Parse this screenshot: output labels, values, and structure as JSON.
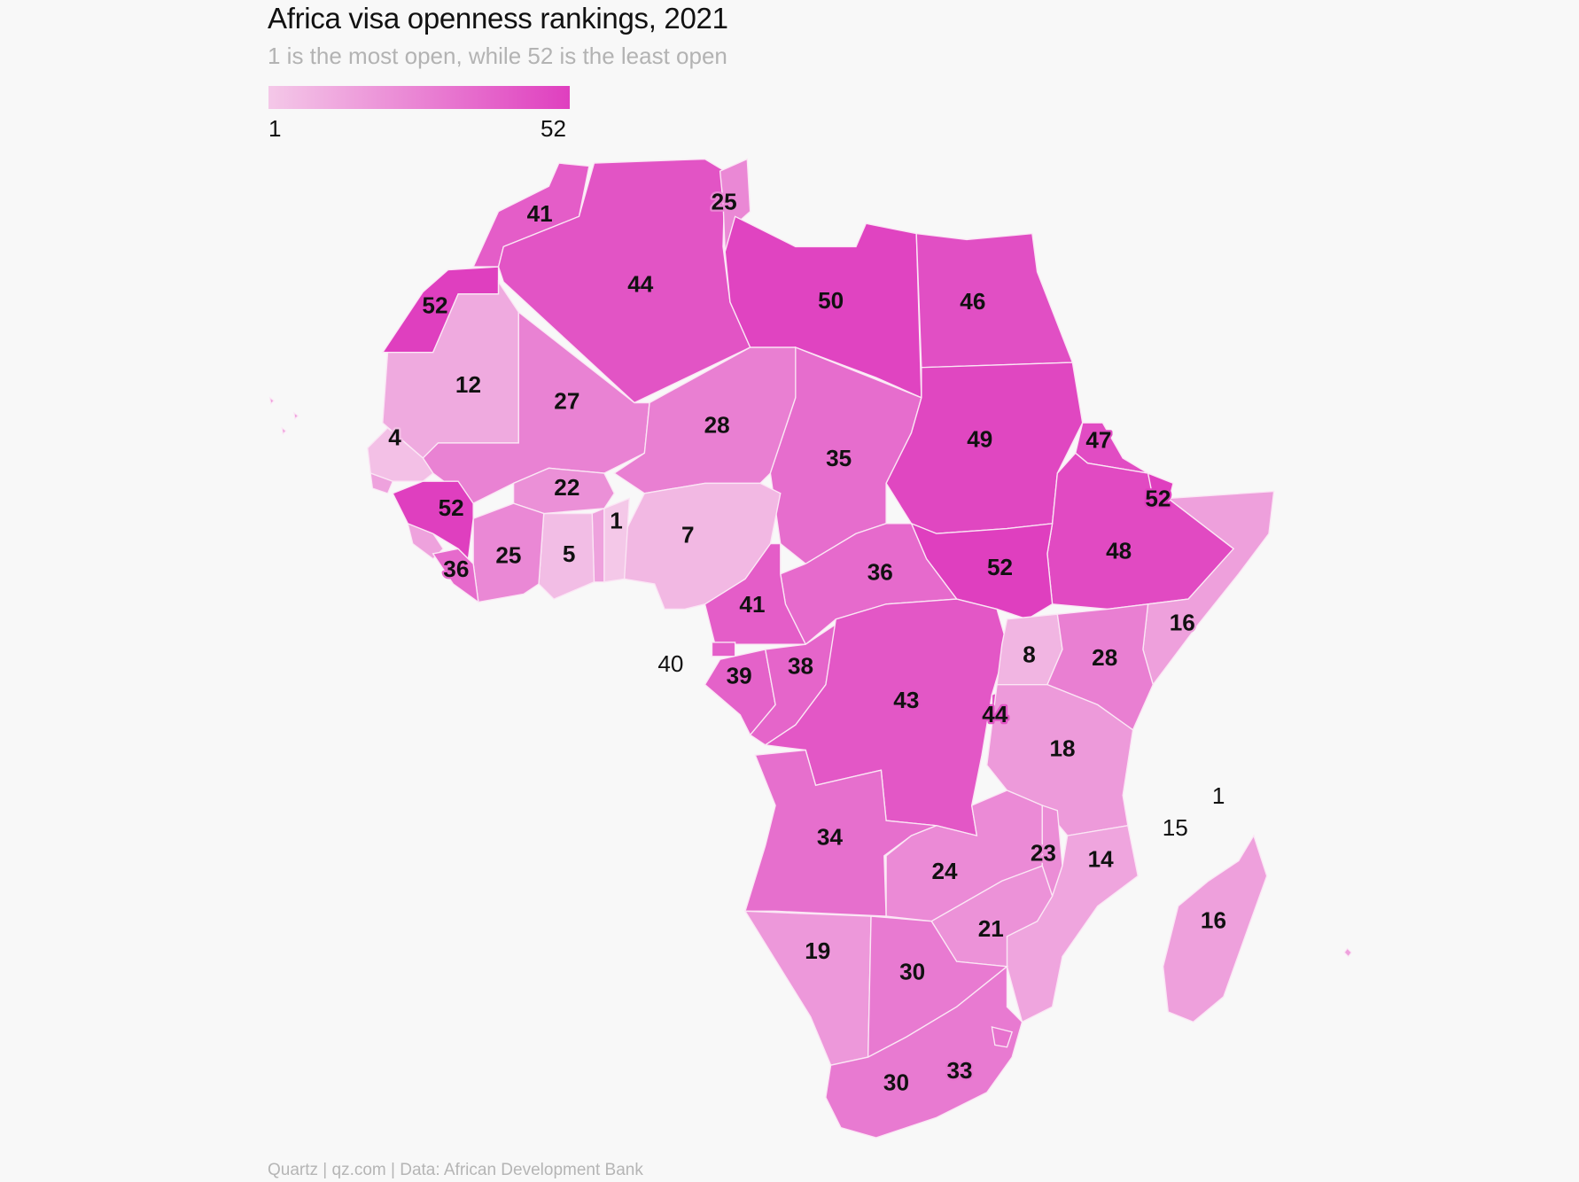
{
  "title": "Africa visa openness rankings, 2021",
  "subtitle": "1 is the most open, while 52 is the least open",
  "legend": {
    "min_label": "1",
    "max_label": "52",
    "min_color": "#f4c8e8",
    "max_color": "#df3fbf"
  },
  "source": "Quartz | qz.com | Data: African Development Bank",
  "chart_data": {
    "type": "choropleth",
    "title": "Africa visa openness rankings, 2021",
    "scale": {
      "min": 1,
      "max": 52
    },
    "ranks": [
      41,
      52,
      44,
      25,
      50,
      46,
      12,
      27,
      28,
      35,
      49,
      47,
      48,
      52,
      16,
      52,
      36,
      41,
      7,
      1,
      5,
      22,
      25,
      36,
      52,
      4,
      40,
      39,
      38,
      43,
      8,
      28,
      44,
      18,
      34,
      24,
      23,
      14,
      21,
      19,
      30,
      30,
      33,
      16,
      1,
      15
    ]
  }
}
